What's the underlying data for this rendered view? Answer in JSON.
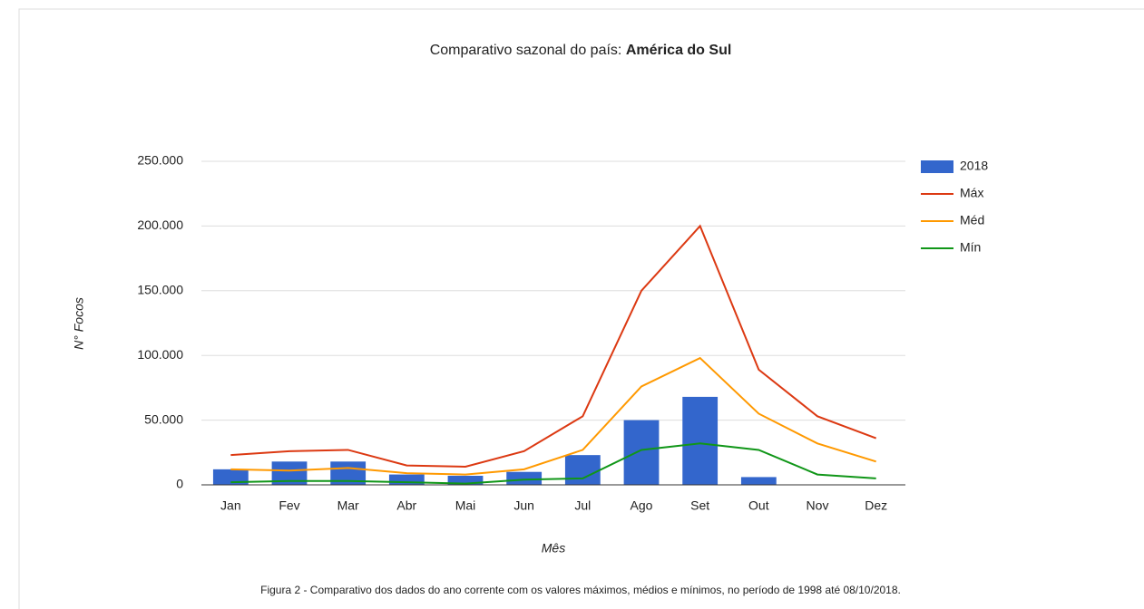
{
  "chart_data": {
    "type": "combo",
    "title": [
      "Comparativo sazonal do país:",
      "América do Sul"
    ],
    "y_label": "N° Focos",
    "x_label": "Mês",
    "caption": "Figura 2 - Comparativo dos dados do ano corrente com os valores máximos, médios e mínimos, no período de 1998 até 08/10/2018.",
    "categories": [
      "Jan",
      "Fev",
      "Mar",
      "Abr",
      "Mai",
      "Jun",
      "Jul",
      "Ago",
      "Set",
      "Out",
      "Nov",
      "Dez"
    ],
    "series": [
      {
        "name": "2018",
        "kind": "bar",
        "color": "#3366cc",
        "values": [
          12000,
          18000,
          18000,
          8000,
          7000,
          10000,
          23000,
          50000,
          68000,
          6000,
          null,
          null
        ]
      },
      {
        "name": "Máx",
        "kind": "line",
        "color": "#dc3912",
        "values": [
          23000,
          26000,
          27000,
          15000,
          14000,
          26000,
          53000,
          150000,
          200000,
          89000,
          53000,
          36000
        ]
      },
      {
        "name": "Méd",
        "kind": "line",
        "color": "#ff9900",
        "values": [
          12000,
          11000,
          13000,
          9000,
          8000,
          12000,
          27000,
          76000,
          98000,
          55000,
          32000,
          18000
        ]
      },
      {
        "name": "Mín",
        "kind": "line",
        "color": "#109618",
        "values": [
          2000,
          3000,
          3000,
          2000,
          1000,
          4000,
          5000,
          27000,
          32000,
          27000,
          8000,
          5000
        ]
      }
    ],
    "ylim": [
      0,
      250000
    ],
    "yticks": [
      0,
      {
        "value": 50000,
        "label": "50.000"
      },
      {
        "value": 100000,
        "label": "100.000"
      },
      {
        "value": 150000,
        "label": "150.000"
      },
      {
        "value": 200000,
        "label": "200.000"
      },
      {
        "value": 250000,
        "label": "250.000"
      }
    ],
    "grid": true,
    "legend": "right"
  }
}
